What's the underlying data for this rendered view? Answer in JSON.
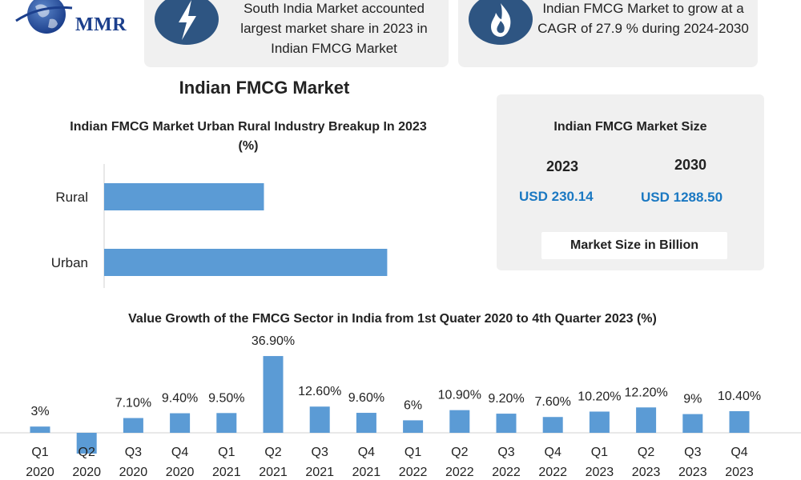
{
  "brand": {
    "logo_text": "MMR"
  },
  "info_cards": [
    {
      "icon": "lightning-bolt-icon",
      "text": "South India Market accounted largest market share in 2023 in Indian FMCG Market"
    },
    {
      "icon": "flame-icon",
      "text": "Indian FMCG Market to grow at a CAGR of 27.9 % during 2024-2030"
    }
  ],
  "main_title": "Indian FMCG Market",
  "market_size": {
    "title": "Indian FMCG Market Size",
    "years": [
      "2023",
      "2030"
    ],
    "values": [
      "USD 230.14",
      "USD 1288.50"
    ],
    "note": "Market Size in Billion"
  },
  "colors": {
    "bar": "#5b9bd5",
    "value_text": "#1a78c2",
    "brand": "#1c3f8c",
    "icon_bg": "#2e5582",
    "panel": "#f0f0f0"
  },
  "chart_data": [
    {
      "type": "bar",
      "orientation": "horizontal",
      "title": "Indian FMCG Market Urban Rural Industry Breakup In 2023 (%)",
      "categories": [
        "Rural",
        "Urban"
      ],
      "values": [
        35,
        62
      ],
      "xlim": [
        0,
        100
      ],
      "grid": false
    },
    {
      "type": "bar",
      "title": "Value Growth of the FMCG Sector in India from 1st Quater 2020 to 4th Quarter 2023 (%)",
      "categories": [
        [
          "Q1",
          "2020"
        ],
        [
          "Q2",
          "2020"
        ],
        [
          "Q3",
          "2020"
        ],
        [
          "Q4",
          "2020"
        ],
        [
          "Q1",
          "2021"
        ],
        [
          "Q2",
          "2021"
        ],
        [
          "Q3",
          "2021"
        ],
        [
          "Q4",
          "2021"
        ],
        [
          "Q1",
          "2022"
        ],
        [
          "Q2",
          "2022"
        ],
        [
          "Q3",
          "2022"
        ],
        [
          "Q4",
          "2022"
        ],
        [
          "Q1",
          "2023"
        ],
        [
          "Q2",
          "2023"
        ],
        [
          "Q3",
          "2023"
        ],
        [
          "Q4",
          "2023"
        ]
      ],
      "values": [
        3,
        -10,
        7.1,
        9.4,
        9.5,
        36.9,
        12.6,
        9.6,
        6,
        10.9,
        9.2,
        7.6,
        10.2,
        12.2,
        9,
        10.4
      ],
      "data_labels": [
        "3%",
        "",
        "7.10%",
        "9.40%",
        "9.50%",
        "36.90%",
        "12.60%",
        "9.60%",
        "6%",
        "10.90%",
        "9.20%",
        "7.60%",
        "10.20%",
        "12.20%",
        "9%",
        "10.40%"
      ],
      "grid": false
    }
  ]
}
